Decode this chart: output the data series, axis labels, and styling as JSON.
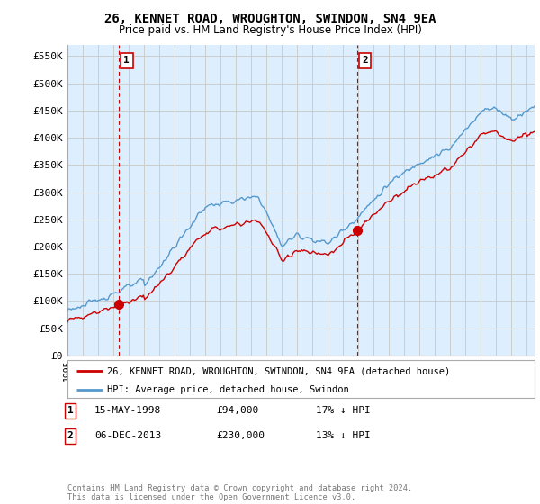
{
  "title": "26, KENNET ROAD, WROUGHTON, SWINDON, SN4 9EA",
  "subtitle": "Price paid vs. HM Land Registry's House Price Index (HPI)",
  "ylabel_ticks": [
    "£0",
    "£50K",
    "£100K",
    "£150K",
    "£200K",
    "£250K",
    "£300K",
    "£350K",
    "£400K",
    "£450K",
    "£500K",
    "£550K"
  ],
  "ytick_values": [
    0,
    50000,
    100000,
    150000,
    200000,
    250000,
    300000,
    350000,
    400000,
    450000,
    500000,
    550000
  ],
  "ylim": [
    0,
    570000
  ],
  "sale1": {
    "date_num": 1998.37,
    "price": 94000,
    "label": "1"
  },
  "sale2": {
    "date_num": 2013.92,
    "price": 230000,
    "label": "2"
  },
  "sale1_vline_x": 1998.37,
  "sale2_vline_x": 2013.92,
  "legend_line1": "26, KENNET ROAD, WROUGHTON, SWINDON, SN4 9EA (detached house)",
  "legend_line2": "HPI: Average price, detached house, Swindon",
  "table_rows": [
    {
      "num": "1",
      "date": "15-MAY-1998",
      "price": "£94,000",
      "hpi": "17% ↓ HPI"
    },
    {
      "num": "2",
      "date": "06-DEC-2013",
      "price": "£230,000",
      "hpi": "13% ↓ HPI"
    }
  ],
  "footer": "Contains HM Land Registry data © Crown copyright and database right 2024.\nThis data is licensed under the Open Government Licence v3.0.",
  "line_color_red": "#cc0000",
  "line_color_blue": "#5599cc",
  "fill_color_blue": "#ddeeff",
  "vline_color": "#cc0000",
  "background_color": "#ffffff",
  "grid_color": "#cccccc",
  "xmin": 1995,
  "xmax": 2025.5
}
